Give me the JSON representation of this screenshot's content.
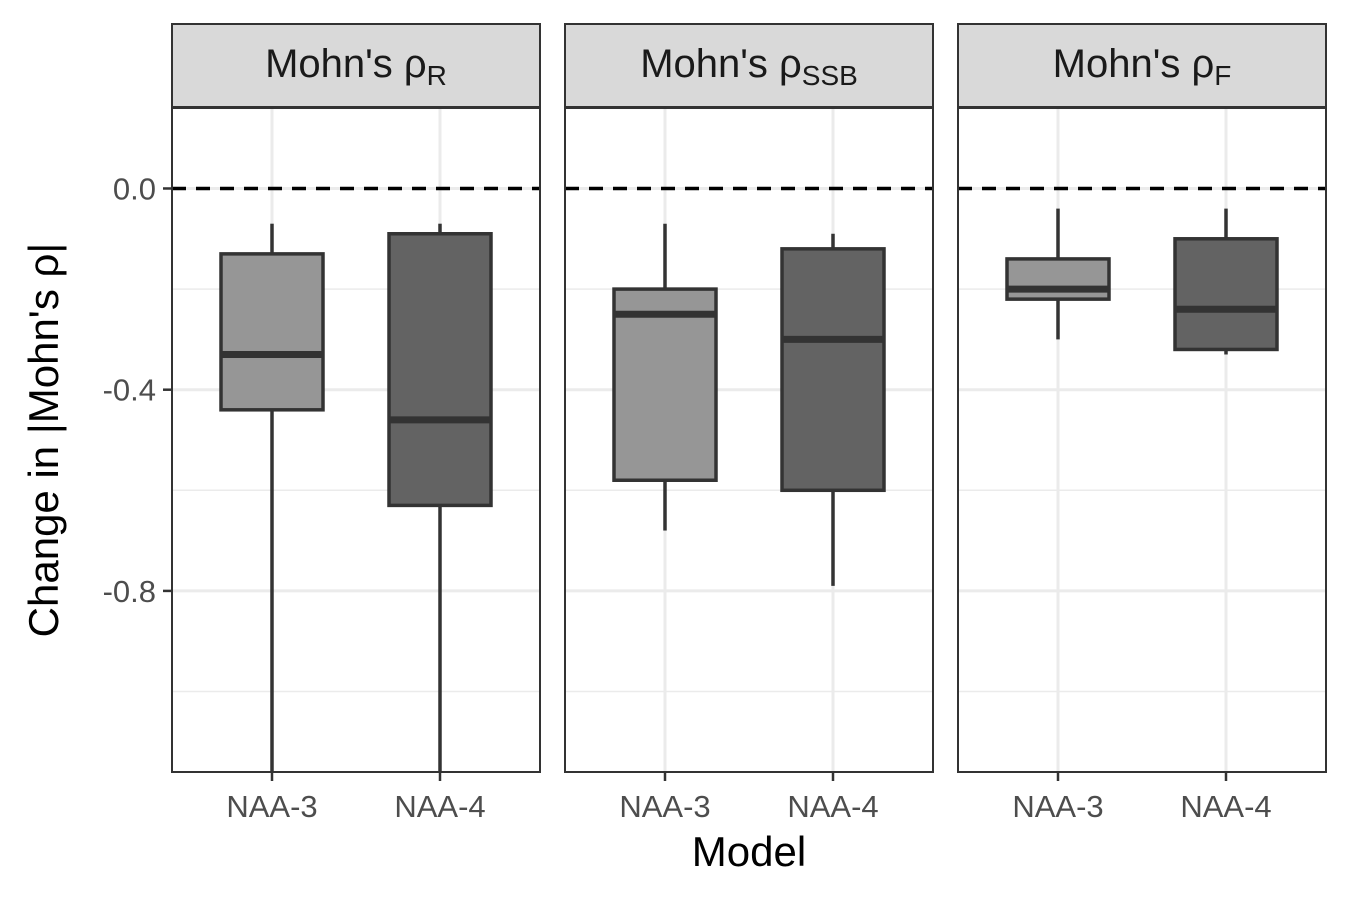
{
  "chart_data": {
    "type": "boxplot",
    "xlabel": "Model",
    "ylabel": {
      "prefix": "Change in ",
      "text": "|Mohn's ",
      "symbol": "ρ",
      "suffix": "|"
    },
    "ylim": [
      -1.16,
      0.16
    ],
    "yticks": [
      0.0,
      -0.4,
      -0.8
    ],
    "ytick_labels": [
      "0.0",
      "-0.4",
      "-0.8"
    ],
    "y_minor_gridlines": [
      -0.2,
      -0.6,
      -1.0
    ],
    "reference_line": {
      "y": 0.0,
      "style": "dashed"
    },
    "categories": [
      "NAA-3",
      "NAA-4"
    ],
    "category_fills": [
      "#969696",
      "#636363"
    ],
    "grid": true,
    "facets": [
      {
        "strip_text": "Mohn's",
        "strip_symbol": "ρ",
        "strip_subscript": "R",
        "boxes": [
          {
            "category": "NAA-3",
            "whisker_low": -1.16,
            "q1": -0.44,
            "median": -0.33,
            "q3": -0.13,
            "whisker_high": -0.07
          },
          {
            "category": "NAA-4",
            "whisker_low": -1.16,
            "q1": -0.63,
            "median": -0.46,
            "q3": -0.09,
            "whisker_high": -0.07
          }
        ]
      },
      {
        "strip_text": "Mohn's",
        "strip_symbol": "ρ",
        "strip_subscript": "SSB",
        "boxes": [
          {
            "category": "NAA-3",
            "whisker_low": -0.68,
            "q1": -0.58,
            "median": -0.25,
            "q3": -0.2,
            "whisker_high": -0.07
          },
          {
            "category": "NAA-4",
            "whisker_low": -0.79,
            "q1": -0.6,
            "median": -0.3,
            "q3": -0.12,
            "whisker_high": -0.09
          }
        ]
      },
      {
        "strip_text": "Mohn's",
        "strip_symbol": "ρ",
        "strip_subscript": "F",
        "boxes": [
          {
            "category": "NAA-3",
            "whisker_low": -0.3,
            "q1": -0.22,
            "median": -0.2,
            "q3": -0.14,
            "whisker_high": -0.04
          },
          {
            "category": "NAA-4",
            "whisker_low": -0.33,
            "q1": -0.32,
            "median": -0.24,
            "q3": -0.1,
            "whisker_high": -0.04
          }
        ]
      }
    ]
  }
}
